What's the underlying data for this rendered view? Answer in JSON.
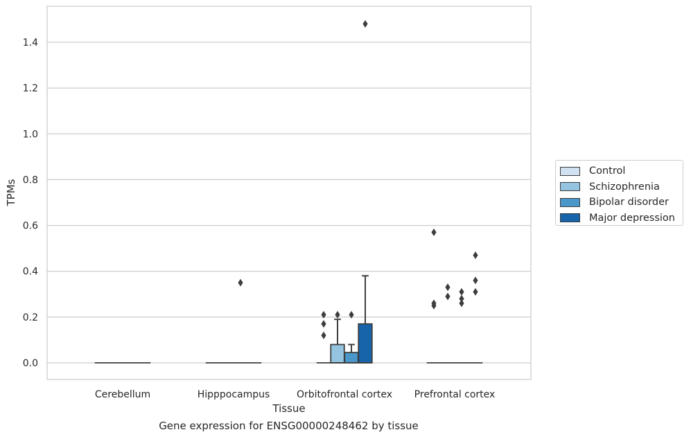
{
  "caption": "Gene expression for ENSG00000248462 by tissue",
  "chart_data": {
    "type": "box",
    "xlabel": "Tissue",
    "ylabel": "TPMs",
    "ylim": [
      -0.07,
      1.55
    ],
    "yticks": [
      0.0,
      0.2,
      0.4,
      0.6,
      0.8,
      1.0,
      1.2,
      1.4
    ],
    "ytick_labels": [
      "0.0",
      "0.2",
      "0.4",
      "0.6",
      "0.8",
      "1.0",
      "1.2",
      "1.4"
    ],
    "grid": "horizontal",
    "legend_position": "right",
    "categories": [
      "Cerebellum",
      "Hipppocampus",
      "Orbitofrontal cortex",
      "Prefrontal cortex"
    ],
    "series": [
      {
        "name": "Control",
        "color": "#d0e1f2",
        "boxes": [
          {
            "q1": 0,
            "median": 0,
            "q3": 0,
            "whisker_low": 0,
            "whisker_high": 0,
            "outliers": []
          },
          {
            "q1": 0,
            "median": 0,
            "q3": 0,
            "whisker_low": 0,
            "whisker_high": 0,
            "outliers": []
          },
          {
            "q1": 0,
            "median": 0,
            "q3": 0,
            "whisker_low": 0,
            "whisker_high": 0,
            "outliers": [
              0.12,
              0.17,
              0.21
            ]
          },
          {
            "q1": 0,
            "median": 0,
            "q3": 0,
            "whisker_low": 0,
            "whisker_high": 0,
            "outliers": [
              0.25,
              0.26,
              0.57
            ]
          }
        ]
      },
      {
        "name": "Schizophrenia",
        "color": "#94c4df",
        "boxes": [
          {
            "q1": 0,
            "median": 0,
            "q3": 0,
            "whisker_low": 0,
            "whisker_high": 0,
            "outliers": []
          },
          {
            "q1": 0,
            "median": 0,
            "q3": 0,
            "whisker_low": 0,
            "whisker_high": 0,
            "outliers": []
          },
          {
            "q1": 0,
            "median": 0,
            "q3": 0.08,
            "whisker_low": 0,
            "whisker_high": 0.19,
            "outliers": [
              0.21
            ]
          },
          {
            "q1": 0,
            "median": 0,
            "q3": 0,
            "whisker_low": 0,
            "whisker_high": 0,
            "outliers": [
              0.29,
              0.33
            ]
          }
        ]
      },
      {
        "name": "Bipolar disorder",
        "color": "#4a98c9",
        "boxes": [
          {
            "q1": 0,
            "median": 0,
            "q3": 0,
            "whisker_low": 0,
            "whisker_high": 0,
            "outliers": []
          },
          {
            "q1": 0,
            "median": 0,
            "q3": 0,
            "whisker_low": 0,
            "whisker_high": 0,
            "outliers": [
              0.35
            ]
          },
          {
            "q1": 0,
            "median": 0,
            "q3": 0.045,
            "whisker_low": 0,
            "whisker_high": 0.08,
            "outliers": [
              0.21
            ]
          },
          {
            "q1": 0,
            "median": 0,
            "q3": 0,
            "whisker_low": 0,
            "whisker_high": 0,
            "outliers": [
              0.26,
              0.28,
              0.31
            ]
          }
        ]
      },
      {
        "name": "Major depression",
        "color": "#1764ab",
        "boxes": [
          {
            "q1": 0,
            "median": 0,
            "q3": 0,
            "whisker_low": 0,
            "whisker_high": 0,
            "outliers": []
          },
          {
            "q1": 0,
            "median": 0,
            "q3": 0,
            "whisker_low": 0,
            "whisker_high": 0,
            "outliers": []
          },
          {
            "q1": 0,
            "median": 0,
            "q3": 0.17,
            "whisker_low": 0,
            "whisker_high": 0.38,
            "outliers": [
              1.48
            ]
          },
          {
            "q1": 0,
            "median": 0,
            "q3": 0,
            "whisker_low": 0,
            "whisker_high": 0,
            "outliers": [
              0.31,
              0.36,
              0.47
            ]
          }
        ]
      }
    ]
  }
}
